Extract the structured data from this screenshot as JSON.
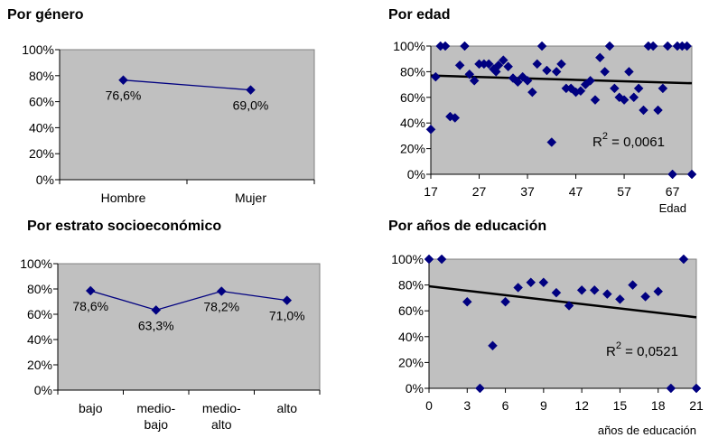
{
  "chart_data": [
    {
      "id": "genero",
      "type": "line",
      "title": "Por género",
      "categories": [
        "Hombre",
        "Mujer"
      ],
      "values": [
        76.6,
        69.0
      ],
      "data_labels": [
        "76,6%",
        "69,0%"
      ],
      "xlabel": "",
      "ylabel": "",
      "ylim": [
        0,
        100
      ],
      "yticks": [
        "0%",
        "20%",
        "40%",
        "60%",
        "80%",
        "100%"
      ],
      "grid": false,
      "colors": {
        "plot_bg": "#c0c0c0",
        "series": "#000080"
      }
    },
    {
      "id": "edad",
      "type": "scatter",
      "title": "Por edad",
      "xlabel": "Edad",
      "ylabel": "",
      "xlim": [
        17,
        71
      ],
      "ylim": [
        0,
        100
      ],
      "xticks": [
        17,
        27,
        37,
        47,
        57,
        67
      ],
      "yticks": [
        "0%",
        "20%",
        "40%",
        "60%",
        "80%",
        "100%"
      ],
      "points": [
        {
          "x": 17,
          "y": 35
        },
        {
          "x": 18,
          "y": 76
        },
        {
          "x": 19,
          "y": 100
        },
        {
          "x": 20,
          "y": 100
        },
        {
          "x": 21,
          "y": 45
        },
        {
          "x": 22,
          "y": 44
        },
        {
          "x": 23,
          "y": 85
        },
        {
          "x": 24,
          "y": 100
        },
        {
          "x": 25,
          "y": 78
        },
        {
          "x": 26,
          "y": 73
        },
        {
          "x": 27,
          "y": 86
        },
        {
          "x": 28,
          "y": 86
        },
        {
          "x": 29,
          "y": 86
        },
        {
          "x": 30,
          "y": 82
        },
        {
          "x": 30.5,
          "y": 80
        },
        {
          "x": 31,
          "y": 85
        },
        {
          "x": 32,
          "y": 89
        },
        {
          "x": 33,
          "y": 84
        },
        {
          "x": 34,
          "y": 75
        },
        {
          "x": 35,
          "y": 72
        },
        {
          "x": 36,
          "y": 76
        },
        {
          "x": 37,
          "y": 73
        },
        {
          "x": 38,
          "y": 64
        },
        {
          "x": 39,
          "y": 86
        },
        {
          "x": 40,
          "y": 100
        },
        {
          "x": 41,
          "y": 81
        },
        {
          "x": 42,
          "y": 25
        },
        {
          "x": 43,
          "y": 80
        },
        {
          "x": 44,
          "y": 86
        },
        {
          "x": 45,
          "y": 67
        },
        {
          "x": 46,
          "y": 67
        },
        {
          "x": 47,
          "y": 64
        },
        {
          "x": 48,
          "y": 65
        },
        {
          "x": 49,
          "y": 70
        },
        {
          "x": 50,
          "y": 73
        },
        {
          "x": 51,
          "y": 58
        },
        {
          "x": 52,
          "y": 91
        },
        {
          "x": 53,
          "y": 80
        },
        {
          "x": 54,
          "y": 100
        },
        {
          "x": 55,
          "y": 67
        },
        {
          "x": 56,
          "y": 60
        },
        {
          "x": 57,
          "y": 58
        },
        {
          "x": 58,
          "y": 80
        },
        {
          "x": 59,
          "y": 60
        },
        {
          "x": 60,
          "y": 67
        },
        {
          "x": 61,
          "y": 50
        },
        {
          "x": 62,
          "y": 100
        },
        {
          "x": 63,
          "y": 100
        },
        {
          "x": 64,
          "y": 50
        },
        {
          "x": 65,
          "y": 67
        },
        {
          "x": 66,
          "y": 100
        },
        {
          "x": 67,
          "y": 0
        },
        {
          "x": 68,
          "y": 100
        },
        {
          "x": 69,
          "y": 100
        },
        {
          "x": 70,
          "y": 100
        },
        {
          "x": 71,
          "y": 0
        }
      ],
      "trendline": {
        "x": [
          17,
          71
        ],
        "y": [
          77,
          71
        ]
      },
      "annotation": {
        "text_prefix": "R",
        "superscript": "2",
        "text_suffix": " = 0,0061"
      },
      "grid": false,
      "colors": {
        "plot_bg": "#c0c0c0",
        "series": "#000080",
        "trend": "#000000"
      }
    },
    {
      "id": "estrato",
      "type": "line",
      "title": "Por estrato socioeconómico",
      "categories": [
        [
          "bajo"
        ],
        [
          "medio-",
          "bajo"
        ],
        [
          "medio-",
          "alto"
        ],
        [
          "alto"
        ]
      ],
      "values": [
        78.6,
        63.3,
        78.2,
        71.0
      ],
      "data_labels": [
        "78,6%",
        "63,3%",
        "78,2%",
        "71,0%"
      ],
      "xlabel": "",
      "ylabel": "",
      "ylim": [
        0,
        100
      ],
      "yticks": [
        "0%",
        "20%",
        "40%",
        "60%",
        "80%",
        "100%"
      ],
      "grid": false,
      "colors": {
        "plot_bg": "#c0c0c0",
        "series": "#000080"
      }
    },
    {
      "id": "educacion",
      "type": "scatter",
      "title": "Por años de educación",
      "xlabel": "años de educación",
      "ylabel": "",
      "xlim": [
        0,
        21
      ],
      "ylim": [
        0,
        100
      ],
      "xticks": [
        0,
        3,
        6,
        9,
        12,
        15,
        18,
        21
      ],
      "yticks": [
        "0%",
        "20%",
        "40%",
        "60%",
        "80%",
        "100%"
      ],
      "points": [
        {
          "x": 0,
          "y": 100
        },
        {
          "x": 1,
          "y": 100
        },
        {
          "x": 3,
          "y": 67
        },
        {
          "x": 4,
          "y": 0
        },
        {
          "x": 5,
          "y": 33
        },
        {
          "x": 6,
          "y": 67
        },
        {
          "x": 7,
          "y": 78
        },
        {
          "x": 8,
          "y": 82
        },
        {
          "x": 9,
          "y": 82
        },
        {
          "x": 10,
          "y": 74
        },
        {
          "x": 11,
          "y": 64
        },
        {
          "x": 12,
          "y": 76
        },
        {
          "x": 13,
          "y": 76
        },
        {
          "x": 14,
          "y": 73
        },
        {
          "x": 15,
          "y": 69
        },
        {
          "x": 16,
          "y": 80
        },
        {
          "x": 17,
          "y": 71
        },
        {
          "x": 18,
          "y": 75
        },
        {
          "x": 19,
          "y": 0
        },
        {
          "x": 20,
          "y": 100
        },
        {
          "x": 21,
          "y": 0
        }
      ],
      "trendline": {
        "x": [
          0,
          21
        ],
        "y": [
          79,
          55
        ]
      },
      "annotation": {
        "text_prefix": "R",
        "superscript": "2",
        "text_suffix": " = 0,0521"
      },
      "grid": false,
      "colors": {
        "plot_bg": "#c0c0c0",
        "series": "#000080",
        "trend": "#000000"
      }
    }
  ]
}
